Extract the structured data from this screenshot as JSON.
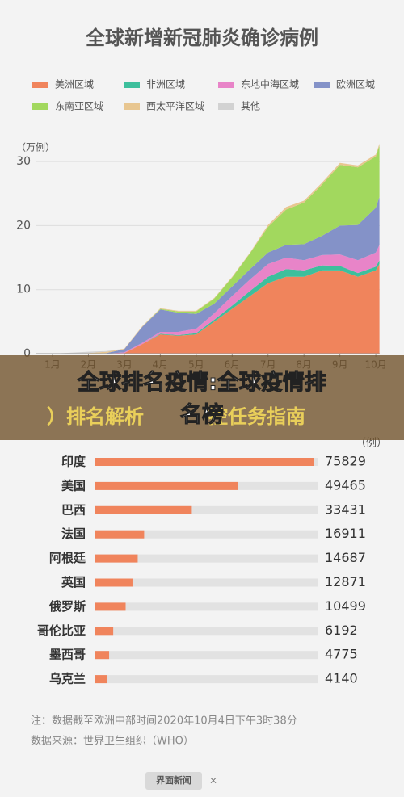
{
  "chart_data": [
    {
      "type": "stacked_area",
      "title": "全球新增新冠肺炎确诊病例",
      "y_label": "（万例）",
      "x": [
        1,
        2,
        2.5,
        3,
        3.5,
        4,
        4.5,
        5,
        5.5,
        6,
        6.5,
        7,
        7.5,
        8,
        8.5,
        9,
        9.5,
        10,
        10.1
      ],
      "xlim": [
        0.55,
        10.11
      ],
      "xticks": [
        {
          "value": 1,
          "label": "1月"
        },
        {
          "value": 2,
          "label": "2月"
        },
        {
          "value": 3,
          "label": "3月"
        },
        {
          "value": 4,
          "label": "4月"
        },
        {
          "value": 5,
          "label": "5月"
        },
        {
          "value": 6,
          "label": "6月"
        },
        {
          "value": 7,
          "label": "7月"
        },
        {
          "value": 8,
          "label": "8月"
        },
        {
          "value": 9,
          "label": "9月"
        },
        {
          "value": 10,
          "label": "10月"
        }
      ],
      "ylim": [
        0,
        32
      ],
      "yticks": [
        0,
        10,
        20,
        30
      ],
      "series": [
        {
          "name": "美洲区域",
          "color": "#f0845c",
          "values": [
            0,
            0,
            0,
            0.1,
            1.5,
            3,
            2.8,
            3,
            5,
            7,
            9,
            11,
            12,
            12,
            13,
            13,
            12,
            13,
            14
          ]
        },
        {
          "name": "非洲区域",
          "color": "#3dbf9c",
          "values": [
            0,
            0,
            0,
            0,
            0,
            0.1,
            0.1,
            0.2,
            0.3,
            0.5,
            0.8,
            1,
            1.2,
            1,
            0.8,
            0.7,
            0.6,
            0.6,
            0.6
          ]
        },
        {
          "name": "东地中海区域",
          "color": "#e884c8",
          "values": [
            0,
            0,
            0,
            0.1,
            0.2,
            0.3,
            0.5,
            0.7,
            1,
            1.5,
            1.8,
            2,
            1.8,
            1.6,
            1.6,
            1.8,
            2,
            2.2,
            2.4
          ]
        },
        {
          "name": "欧洲区域",
          "color": "#8492c8",
          "values": [
            0,
            0,
            0.1,
            0.5,
            2.5,
            3.5,
            3,
            2.3,
            1.5,
            1.5,
            1.6,
            1.8,
            2,
            2.5,
            3,
            4.5,
            5.5,
            7,
            7.5
          ]
        },
        {
          "name": "东南亚区域",
          "color": "#a2d85e",
          "values": [
            0,
            0,
            0,
            0,
            0,
            0.1,
            0.2,
            0.4,
            0.8,
            1.4,
            2.5,
            4,
            5.5,
            6.5,
            8,
            9.5,
            9,
            8,
            8
          ]
        },
        {
          "name": "西太平洋区域",
          "color": "#e8c690",
          "values": [
            0,
            0.1,
            0.2,
            0.1,
            0.1,
            0.1,
            0.1,
            0.1,
            0.1,
            0.1,
            0.1,
            0.3,
            0.4,
            0.3,
            0.3,
            0.3,
            0.3,
            0.3,
            0.3
          ]
        },
        {
          "name": "其他",
          "color": "#d2d2d2",
          "values": [
            0,
            0.2,
            0.1,
            0,
            0,
            0,
            0,
            0,
            0,
            0,
            0,
            0,
            0,
            0,
            0,
            0,
            0,
            0,
            0
          ]
        }
      ]
    },
    {
      "type": "hbar",
      "unit": "（例）",
      "categories": [
        "印度",
        "美国",
        "巴西",
        "法国",
        "阿根廷",
        "英国",
        "俄罗斯",
        "哥伦比亚",
        "墨西哥",
        "乌克兰"
      ],
      "values": [
        75829,
        49465,
        33431,
        16911,
        14687,
        12871,
        10499,
        6192,
        4775,
        4140
      ],
      "xlim": [
        0,
        77000
      ],
      "color": "#f0845c",
      "track_color": "#e2e2e2"
    }
  ],
  "notes": [
    "注：数据截至欧洲中部时间2020年10月4日下午3时38分",
    "数据来源：世界卫生组织（WHO）"
  ],
  "footer": {
    "brand": "界面新闻",
    "separator": "×"
  },
  "banner": {
    "behind": [
      "）排名解析",
      "控任务指南"
    ],
    "title": [
      "全球排名疫情:全球疫情排",
      "名榜"
    ]
  }
}
